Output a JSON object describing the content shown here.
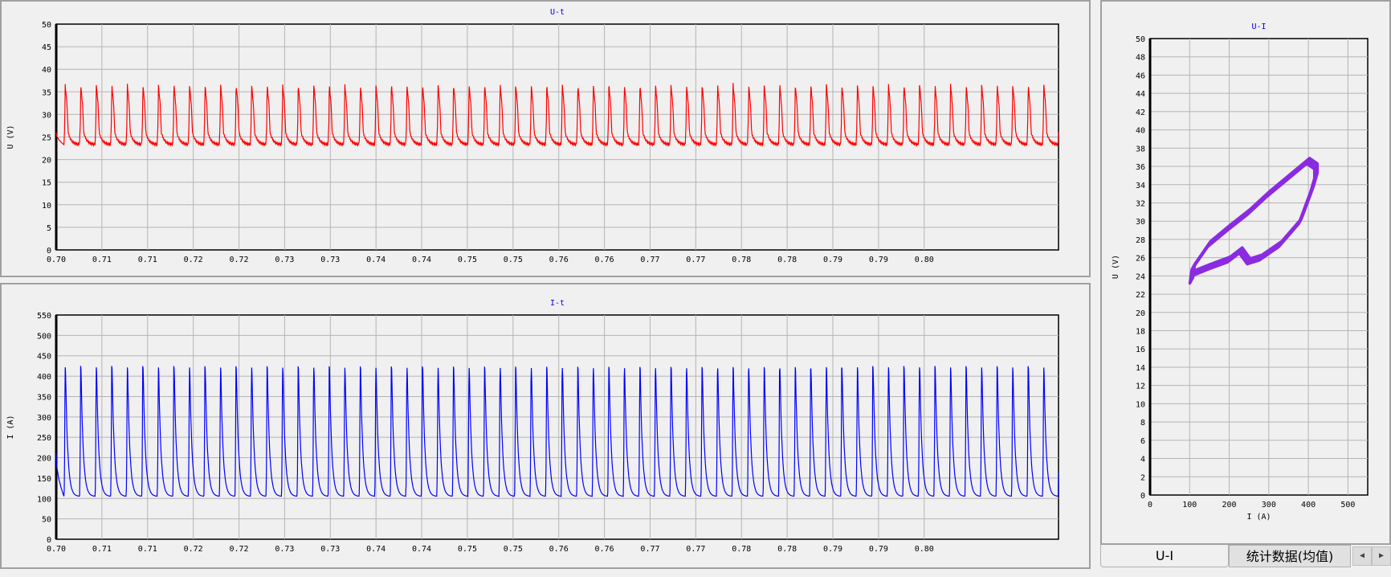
{
  "colors": {
    "voltage": "#ff0000",
    "current": "#0000ff",
    "ui_loop": "#8a2be2",
    "title": "#0000ff",
    "background": "#f0f0f0",
    "grid": "#b4b4b4"
  },
  "tabs": {
    "items": [
      {
        "label": "U-I",
        "active": true
      },
      {
        "label": "统计数据(均值)",
        "active": false
      }
    ],
    "prev_icon": "arrow-left-icon",
    "next_icon": "arrow-right-icon"
  },
  "chart_data": [
    {
      "type": "line",
      "title": "U-t",
      "ylabel": "U (V)",
      "xlabel": "",
      "xlim": [
        0.7,
        0.8097
      ],
      "ylim": [
        0,
        50
      ],
      "x_tick_labels": [
        "0.70",
        "0.71",
        "0.71",
        "0.72",
        "0.72",
        "0.73",
        "0.73",
        "0.74",
        "0.74",
        "0.75",
        "0.75",
        "0.76",
        "0.76",
        "0.77",
        "0.77",
        "0.78",
        "0.78",
        "0.79",
        "0.79",
        "0.80"
      ],
      "y_tick_labels": [
        "0",
        "5",
        "10",
        "15",
        "20",
        "25",
        "30",
        "35",
        "40",
        "45",
        "50"
      ],
      "grid": true,
      "series": [
        {
          "waveform": "periodic pulses",
          "period_s": 0.0017,
          "min": 23.3,
          "peak": 36.6,
          "start_value": 26
        }
      ]
    },
    {
      "type": "line",
      "title": "I-t",
      "ylabel": "I (A)",
      "xlabel": "",
      "xlim": [
        0.7,
        0.8097
      ],
      "ylim": [
        0,
        550
      ],
      "x_tick_labels": [
        "0.70",
        "0.71",
        "0.71",
        "0.72",
        "0.72",
        "0.73",
        "0.73",
        "0.74",
        "0.74",
        "0.75",
        "0.75",
        "0.76",
        "0.76",
        "0.77",
        "0.77",
        "0.78",
        "0.78",
        "0.79",
        "0.79",
        "0.80"
      ],
      "y_tick_labels": [
        "0",
        "50",
        "100",
        "150",
        "200",
        "250",
        "300",
        "350",
        "400",
        "450",
        "500",
        "550"
      ],
      "grid": true,
      "series": [
        {
          "waveform": "periodic pulses",
          "period_s": 0.0017,
          "min": 105,
          "peak": 425,
          "start_value": 210
        }
      ]
    },
    {
      "type": "scatter",
      "title": "U-I",
      "xlabel": "I (A)",
      "ylabel": "U (V)",
      "xlim": [
        0,
        550
      ],
      "ylim": [
        0,
        50
      ],
      "x_tick_labels": [
        "0",
        "100",
        "200",
        "300",
        "400",
        "500"
      ],
      "y_tick_labels": [
        "0",
        "2",
        "4",
        "6",
        "8",
        "10",
        "12",
        "14",
        "16",
        "18",
        "20",
        "22",
        "24",
        "26",
        "28",
        "30",
        "32",
        "34",
        "36",
        "38",
        "40",
        "42",
        "44",
        "46",
        "48",
        "50"
      ],
      "grid": true,
      "loop": {
        "upper_branch": [
          [
            105,
            23.5
          ],
          [
            110,
            25
          ],
          [
            150,
            27.5
          ],
          [
            200,
            29.3
          ],
          [
            250,
            31
          ],
          [
            300,
            33
          ],
          [
            350,
            34.8
          ],
          [
            400,
            36.6
          ],
          [
            420,
            36
          ]
        ],
        "lower_branch": [
          [
            420,
            35
          ],
          [
            410,
            33.5
          ],
          [
            380,
            30
          ],
          [
            330,
            27.5
          ],
          [
            280,
            26
          ],
          [
            250,
            25.6
          ],
          [
            230,
            26.8
          ],
          [
            200,
            25.8
          ],
          [
            150,
            25
          ],
          [
            110,
            24.3
          ]
        ]
      }
    }
  ]
}
